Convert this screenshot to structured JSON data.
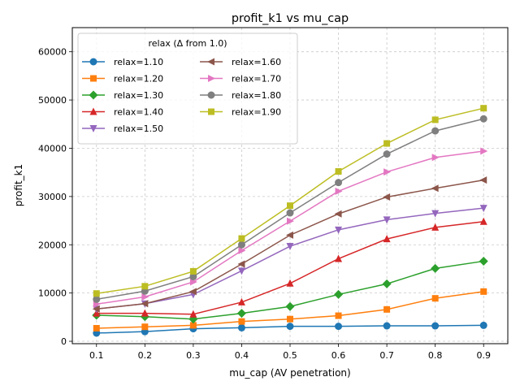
{
  "chart_data": {
    "type": "line",
    "title": "profit_k1 vs mu_cap",
    "xlabel": "mu_cap (AV penetration)",
    "ylabel": "profit_k1",
    "xlim": [
      0.05,
      0.95
    ],
    "ylim": [
      -500,
      65000
    ],
    "x": [
      0.1,
      0.2,
      0.3,
      0.4,
      0.5,
      0.6,
      0.7,
      0.8,
      0.9
    ],
    "x_tick_labels": [
      "0.1",
      "0.2",
      "0.3",
      "0.4",
      "0.5",
      "0.6",
      "0.7",
      "0.8",
      "0.9"
    ],
    "y_ticks": [
      0,
      10000,
      20000,
      30000,
      40000,
      50000,
      60000
    ],
    "y_tick_labels": [
      "0",
      "10000",
      "20000",
      "30000",
      "40000",
      "50000",
      "60000"
    ],
    "grid": true,
    "legend": {
      "title": "relax (Δ from 1.0)",
      "position": "upper-left",
      "columns": 2
    },
    "series": [
      {
        "name": "relax=1.10",
        "color": "#1f77b4",
        "marker": "circle",
        "values": [
          1700,
          2000,
          2600,
          2800,
          3100,
          3100,
          3200,
          3200,
          3300
        ]
      },
      {
        "name": "relax=1.20",
        "color": "#ff7f0e",
        "marker": "square",
        "values": [
          2700,
          3000,
          3300,
          4100,
          4600,
          5300,
          6600,
          8900,
          10300
        ]
      },
      {
        "name": "relax=1.30",
        "color": "#2ca02c",
        "marker": "diamond",
        "values": [
          5400,
          5100,
          4600,
          5800,
          7200,
          9700,
          11900,
          15100,
          16600
        ]
      },
      {
        "name": "relax=1.40",
        "color": "#d62728",
        "marker": "triangle-up",
        "values": [
          5800,
          5800,
          5600,
          8100,
          12000,
          17100,
          21200,
          23600,
          24800
        ]
      },
      {
        "name": "relax=1.50",
        "color": "#9467bd",
        "marker": "triangle-down",
        "values": [
          6700,
          7800,
          9700,
          14600,
          19700,
          23100,
          25200,
          26500,
          27600
        ]
      },
      {
        "name": "relax=1.60",
        "color": "#8c564b",
        "marker": "triangle-left",
        "values": [
          6700,
          7800,
          10300,
          16000,
          22000,
          26400,
          29900,
          31700,
          33400
        ]
      },
      {
        "name": "relax=1.70",
        "color": "#e377c2",
        "marker": "triangle-right",
        "values": [
          7700,
          9200,
          12300,
          18800,
          24900,
          31100,
          35100,
          38100,
          39400
        ]
      },
      {
        "name": "relax=1.80",
        "color": "#7f7f7f",
        "marker": "circle",
        "values": [
          8700,
          10400,
          13400,
          20000,
          26600,
          32900,
          38800,
          43600,
          46100
        ]
      },
      {
        "name": "relax=1.90",
        "color": "#bcbd22",
        "marker": "square",
        "values": [
          9900,
          11400,
          14500,
          21300,
          28100,
          35200,
          41000,
          45900,
          48300
        ]
      }
    ]
  }
}
